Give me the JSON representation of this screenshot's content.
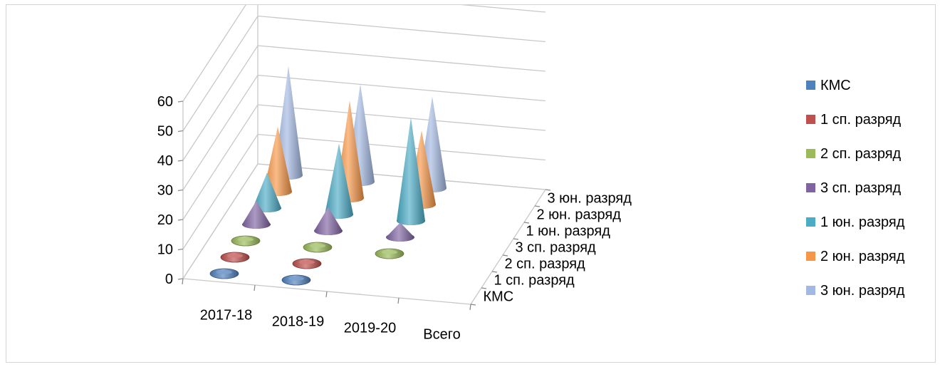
{
  "chart_data": {
    "type": "3d-cone",
    "title": "",
    "categories": [
      "2017-18",
      "2018-19",
      "2019-20",
      "Всего"
    ],
    "series": [
      {
        "name": "КМС",
        "color": "#4f81bd",
        "values": [
          1,
          1,
          0,
          0
        ]
      },
      {
        "name": "1 сп. разряд",
        "color": "#c0504d",
        "values": [
          1,
          1,
          0,
          0
        ]
      },
      {
        "name": "2 сп. разряд",
        "color": "#9bbb59",
        "values": [
          1,
          1,
          1,
          0
        ]
      },
      {
        "name": "3 сп. разряд",
        "color": "#8064a2",
        "values": [
          8,
          8,
          5,
          0
        ]
      },
      {
        "name": "1 юн. разряд",
        "color": "#4bacc6",
        "values": [
          12,
          24,
          35,
          0
        ]
      },
      {
        "name": "2 юн. разряд",
        "color": "#f79646",
        "values": [
          22,
          33,
          25,
          0
        ]
      },
      {
        "name": "3 юн. разряд",
        "color": "#a3b8e2",
        "values": [
          37,
          33,
          31,
          0
        ]
      }
    ],
    "y_ticks": [
      "0",
      "10",
      "20",
      "30",
      "40",
      "50",
      "60"
    ],
    "ylim": [
      0,
      60
    ],
    "depth_labels": [
      "КМС",
      "1 сп. разряд",
      "2 сп. разряд",
      "3 сп. разряд",
      "1 юн. разряд",
      "2 юн. разряд",
      "3 юн. разряд"
    ],
    "legend_position": "right",
    "grid": true
  }
}
